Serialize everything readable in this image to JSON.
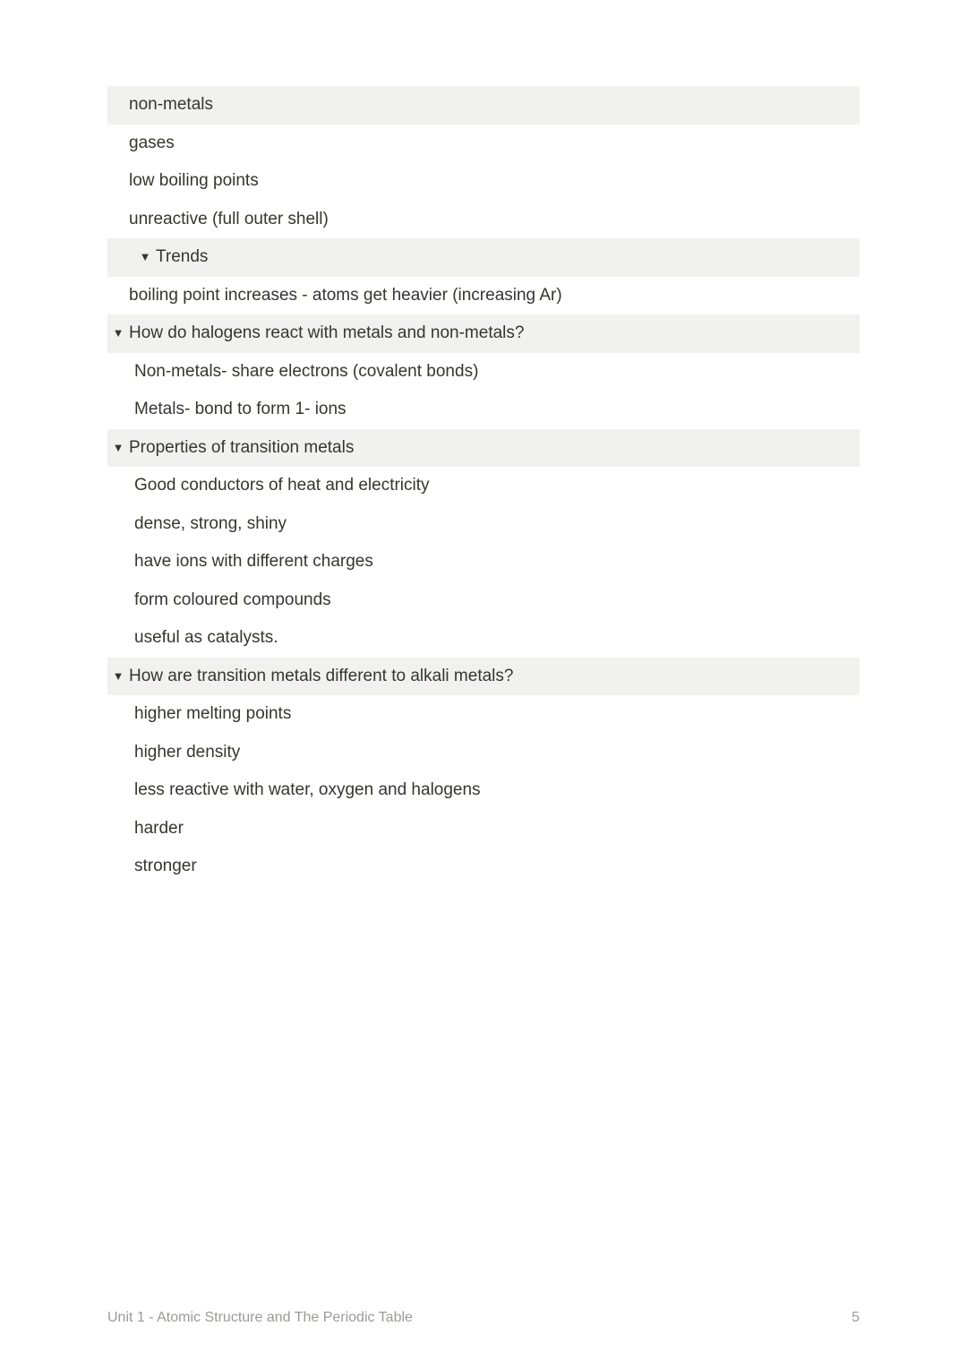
{
  "blocks": [
    {
      "indent": 3,
      "toggle": false,
      "highlighted": true,
      "textPad": true,
      "text": "non-metals"
    },
    {
      "indent": 3,
      "toggle": false,
      "highlighted": false,
      "textPad": true,
      "text": "gases"
    },
    {
      "indent": 3,
      "toggle": false,
      "highlighted": false,
      "textPad": true,
      "text": "low boiling points"
    },
    {
      "indent": 3,
      "toggle": false,
      "highlighted": false,
      "textPad": true,
      "text": "unreactive (full outer shell)"
    },
    {
      "indent": 2,
      "toggle": true,
      "highlighted": true,
      "textPad": false,
      "text": "Trends"
    },
    {
      "indent": 3,
      "toggle": false,
      "highlighted": false,
      "textPad": true,
      "text": "boiling point increases - atoms get heavier (increasing Ar)"
    },
    {
      "indent": 1,
      "toggle": true,
      "highlighted": true,
      "textPad": false,
      "text": "How do halogens react with metals and non-metals?"
    },
    {
      "indent": 2,
      "toggle": false,
      "highlighted": false,
      "textPad": false,
      "text": "Non-metals- share electrons (covalent bonds)"
    },
    {
      "indent": 2,
      "toggle": false,
      "highlighted": false,
      "textPad": false,
      "text": "Metals- bond to form 1- ions"
    },
    {
      "indent": 1,
      "toggle": true,
      "highlighted": true,
      "textPad": false,
      "text": "Properties of transition metals"
    },
    {
      "indent": 2,
      "toggle": false,
      "highlighted": false,
      "textPad": false,
      "text": "Good conductors of heat and electricity"
    },
    {
      "indent": 2,
      "toggle": false,
      "highlighted": false,
      "textPad": false,
      "text": "dense, strong, shiny"
    },
    {
      "indent": 2,
      "toggle": false,
      "highlighted": false,
      "textPad": false,
      "text": "have ions with different charges"
    },
    {
      "indent": 2,
      "toggle": false,
      "highlighted": false,
      "textPad": false,
      "text": "form coloured compounds"
    },
    {
      "indent": 2,
      "toggle": false,
      "highlighted": false,
      "textPad": false,
      "text": "useful as catalysts."
    },
    {
      "indent": 1,
      "toggle": true,
      "highlighted": true,
      "textPad": false,
      "text": "How are transition metals different to alkali metals?"
    },
    {
      "indent": 2,
      "toggle": false,
      "highlighted": false,
      "textPad": false,
      "text": "higher melting points"
    },
    {
      "indent": 2,
      "toggle": false,
      "highlighted": false,
      "textPad": false,
      "text": "higher density"
    },
    {
      "indent": 2,
      "toggle": false,
      "highlighted": false,
      "textPad": false,
      "text": "less reactive with water, oxygen and halogens"
    },
    {
      "indent": 2,
      "toggle": false,
      "highlighted": false,
      "textPad": false,
      "text": "harder"
    },
    {
      "indent": 2,
      "toggle": false,
      "highlighted": false,
      "textPad": false,
      "text": "stronger"
    }
  ],
  "footer": {
    "title": "Unit 1 - Atomic Structure and The Periodic Table",
    "pageNumber": "5"
  },
  "toggleGlyph": "▼"
}
